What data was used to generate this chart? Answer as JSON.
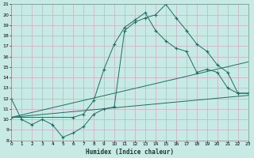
{
  "xlabel": "Humidex (Indice chaleur)",
  "bg_color": "#c8eae4",
  "grid_color": "#c8b8c8",
  "line_color": "#1e6e64",
  "xmin": 0,
  "xmax": 23,
  "ymin": 8,
  "ymax": 21,
  "yticks": [
    8,
    9,
    10,
    11,
    12,
    13,
    14,
    15,
    16,
    17,
    18,
    19,
    20,
    21
  ],
  "xticks": [
    0,
    1,
    2,
    3,
    4,
    5,
    6,
    7,
    8,
    9,
    10,
    11,
    12,
    13,
    14,
    15,
    16,
    17,
    18,
    19,
    20,
    21,
    22,
    23
  ],
  "line1_x": [
    0,
    1,
    2,
    3,
    4,
    5,
    6,
    7,
    8,
    9,
    10,
    11,
    12,
    13,
    14,
    15,
    16,
    17,
    18,
    19,
    20,
    21,
    22,
    23
  ],
  "line1_y": [
    12.0,
    10.0,
    9.5,
    10.0,
    9.5,
    8.3,
    8.7,
    9.3,
    10.5,
    11.0,
    11.2,
    18.5,
    19.3,
    19.7,
    20.0,
    21.0,
    19.7,
    18.5,
    17.2,
    16.5,
    15.2,
    14.5,
    12.5,
    12.5
  ],
  "line2_x": [
    0,
    6,
    7,
    8,
    9,
    10,
    11,
    12,
    13,
    14,
    15,
    16,
    17,
    18,
    19,
    20,
    21,
    22,
    23
  ],
  "line2_y": [
    10.2,
    10.2,
    10.5,
    11.8,
    14.8,
    17.2,
    18.8,
    19.5,
    20.2,
    18.5,
    17.5,
    16.8,
    16.5,
    14.5,
    14.8,
    14.5,
    13.0,
    12.5,
    12.5
  ],
  "line3_x": [
    0,
    23
  ],
  "line3_y": [
    10.2,
    12.3
  ],
  "line4_x": [
    0,
    23
  ],
  "line4_y": [
    10.2,
    15.5
  ]
}
